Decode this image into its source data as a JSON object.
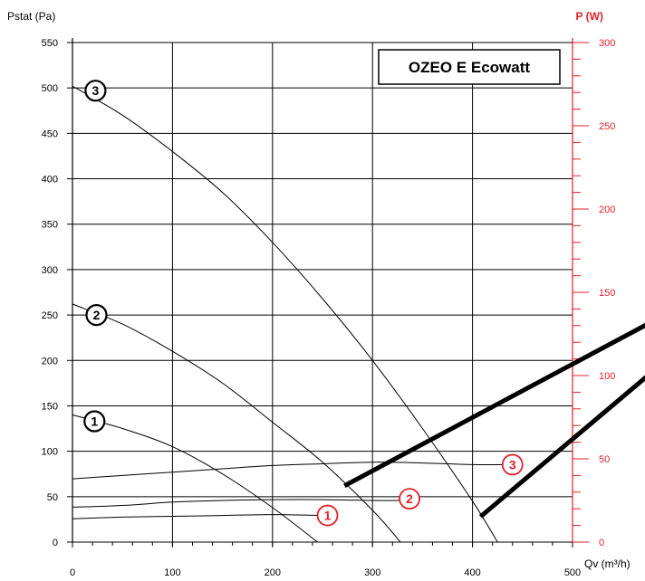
{
  "chart_data": {
    "type": "line",
    "title": "OZEO E Ecowatt",
    "xlabel": "Qv (m³/h)",
    "ylabel": "Pstat (Pa)",
    "y2label": "P (W)",
    "xlim": [
      0,
      500
    ],
    "ylim": [
      0,
      550
    ],
    "y2lim": [
      0,
      300
    ],
    "x_ticks": [
      "0",
      "100",
      "200",
      "300",
      "400",
      "500"
    ],
    "y_ticks": [
      "0",
      "50",
      "100",
      "150",
      "200",
      "250",
      "300",
      "350",
      "400",
      "450",
      "500",
      "550"
    ],
    "y2_ticks": [
      "0",
      "50",
      "100",
      "150",
      "200",
      "250",
      "300"
    ],
    "grid": true,
    "colors": {
      "primary": "#000000",
      "secondary_axis": "#e0202a"
    },
    "pressure_series": [
      {
        "name": "1",
        "x": [
          0,
          50,
          100,
          150,
          200,
          245
        ],
        "y": [
          140,
          125,
          105,
          75,
          38,
          0
        ]
      },
      {
        "name": "2",
        "x": [
          0,
          50,
          100,
          150,
          200,
          250,
          300,
          328
        ],
        "y": [
          262,
          240,
          210,
          175,
          132,
          88,
          35,
          0
        ]
      },
      {
        "name": "3",
        "x": [
          0,
          50,
          100,
          150,
          200,
          250,
          300,
          350,
          400,
          425
        ],
        "y": [
          502,
          470,
          430,
          385,
          330,
          268,
          200,
          125,
          45,
          0
        ]
      }
    ],
    "power_series": [
      {
        "name": "1",
        "x": [
          0,
          50,
          100,
          150,
          200,
          250
        ],
        "y": [
          14,
          15,
          15.5,
          16,
          16.5,
          16
        ]
      },
      {
        "name": "2",
        "x": [
          0,
          50,
          100,
          150,
          200,
          250,
          300,
          330
        ],
        "y": [
          21,
          22,
          24,
          25,
          25.5,
          25.5,
          25,
          25
        ]
      },
      {
        "name": "3",
        "x": [
          0,
          50,
          100,
          150,
          200,
          250,
          300,
          350,
          400,
          440
        ],
        "y": [
          38,
          40,
          42,
          44,
          46,
          47,
          48,
          47.5,
          46.5,
          46.5
        ]
      }
    ],
    "series_labels": [
      "1",
      "2",
      "3"
    ],
    "thick_lines": [
      {
        "x": [
          272,
          575
        ],
        "y": [
          62,
          240
        ]
      },
      {
        "x": [
          408,
          575
        ],
        "y": [
          28,
          183
        ]
      }
    ]
  }
}
